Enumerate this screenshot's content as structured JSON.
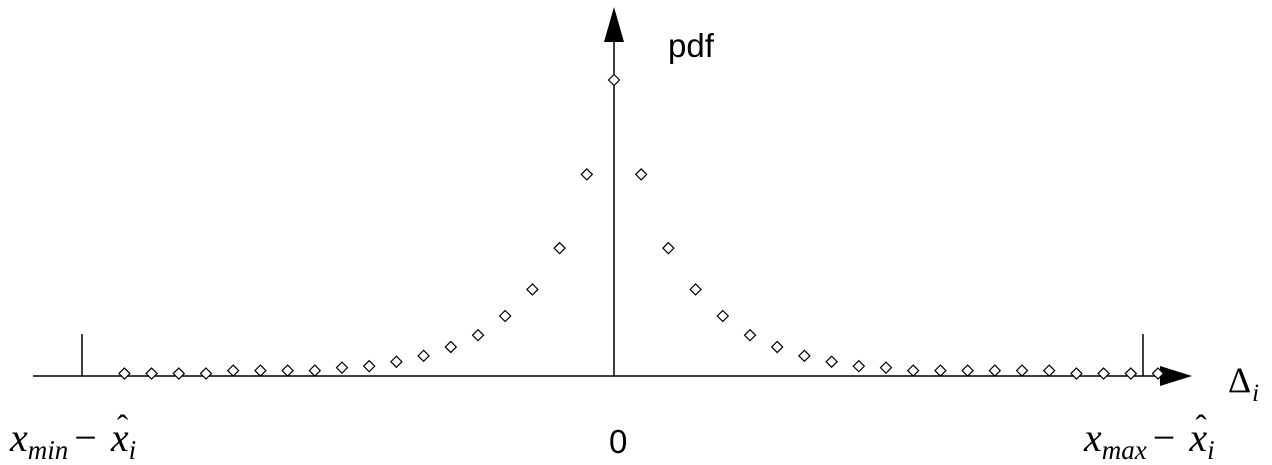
{
  "labels": {
    "y_axis": "pdf",
    "x_axis_symbol": "Δ",
    "x_axis_subscript": "i",
    "origin": "0",
    "left_bound": {
      "var": "x",
      "sub": "min",
      "minus": "−",
      "hat_var": "x",
      "hat_sub": "i"
    },
    "right_bound": {
      "var": "x",
      "sub": "max",
      "minus": "−",
      "hat_var": "x",
      "hat_sub": "i"
    }
  },
  "chart_data": {
    "type": "scatter",
    "marker": "open-diamond",
    "xlabel": "Δi",
    "ylabel": "pdf",
    "x_range_labels": [
      "xmin − x̂i",
      "0",
      "xmax − x̂i"
    ],
    "points_left": [
      0.005,
      0.005,
      0.005,
      0.005,
      0.015,
      0.015,
      0.015,
      0.015,
      0.025,
      0.03,
      0.045,
      0.065,
      0.095,
      0.135,
      0.2,
      0.29,
      0.43,
      0.68,
      1.0
    ],
    "points_right": [
      0.68,
      0.43,
      0.29,
      0.2,
      0.135,
      0.095,
      0.065,
      0.045,
      0.03,
      0.025,
      0.015,
      0.015,
      0.015,
      0.015,
      0.015,
      0.015,
      0.005,
      0.005,
      0.005,
      0.005
    ]
  }
}
